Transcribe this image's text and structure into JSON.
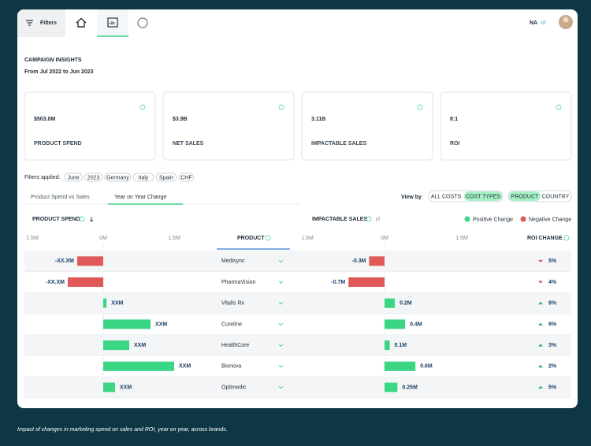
{
  "nav": {
    "filters": "Filters",
    "brand": "NA",
    "brand_suffix": "VI"
  },
  "header": {
    "title": "CAMPAIGN INSIGHTS",
    "subtitle": "From Jul 2022 to Jun 2023"
  },
  "kpis": [
    {
      "value": "$503.0M",
      "label": "PRODUCT SPEND"
    },
    {
      "value": "$3.9B",
      "label": "NET SALES"
    },
    {
      "value": "3.11B",
      "label": "IMPACTABLE SALES"
    },
    {
      "value": "8:1",
      "label": "ROI"
    }
  ],
  "filters": {
    "label": "Filters applied:",
    "chips": [
      "June",
      "2023",
      "Germany",
      "Italy",
      "Spain",
      "CHF"
    ]
  },
  "tabs": [
    "Product Spend vs Sales",
    "Year on Year Change"
  ],
  "view_by": {
    "label": "View by",
    "cost": [
      "ALL COSTS",
      "COST TYPES"
    ],
    "dim": [
      "PRODUCT",
      "COUNTRY"
    ]
  },
  "table": {
    "spend_header": "PRODUCT SPEND",
    "sales_header": "IMPACTABLE SALES",
    "product_header": "PRODUCT",
    "roi_header": "ROI CHANGE",
    "legend": [
      "Positive Change",
      "Negative Change"
    ],
    "colors": {
      "positive": "#3ad684",
      "negative": "#e05858"
    },
    "spend_lim": [
      -1.5,
      1.5
    ],
    "spend_ticks": [
      {
        "value": -1.5,
        "label": "1.5M"
      },
      {
        "value": 0,
        "label": "0M"
      },
      {
        "value": 1.5,
        "label": "1.5M"
      }
    ],
    "sales_lim": [
      -1.5,
      1.5
    ],
    "sales_ticks": [
      {
        "value": -1.5,
        "label": "1.5M"
      },
      {
        "value": 0,
        "label": "0M"
      },
      {
        "value": 1.5,
        "label": "1.5M"
      }
    ],
    "rows": [
      {
        "product": "Medisync",
        "spend": -0.55,
        "spend_label": "-XX.XM",
        "sales": -0.3,
        "sales_label": "-0.3M",
        "roi": "5%"
      },
      {
        "product": "PharmaVision",
        "spend": -0.75,
        "spend_label": "-XX.XM",
        "sales": -0.7,
        "sales_label": "-0.7M",
        "roi": "4%"
      },
      {
        "product": "Vitalis Rx",
        "spend": 0.07,
        "spend_label": "XXM",
        "sales": 0.2,
        "sales_label": "0.2M",
        "roi": "8%"
      },
      {
        "product": "Cureline",
        "spend": 1.0,
        "spend_label": "XXM",
        "sales": 0.4,
        "sales_label": "0.4M",
        "roi": "9%"
      },
      {
        "product": "HealthCore",
        "spend": 0.55,
        "spend_label": "XXM",
        "sales": 0.1,
        "sales_label": "0.1M",
        "roi": "3%"
      },
      {
        "product": "Bionova",
        "spend": 1.5,
        "spend_label": "XXM",
        "sales": 0.6,
        "sales_label": "0.6M",
        "roi": "2%"
      },
      {
        "product": "Optimedic",
        "spend": 0.25,
        "spend_label": "XXM",
        "sales": 0.25,
        "sales_label": "0.25M",
        "roi": "5%"
      }
    ]
  },
  "caption": "Impact of changes in marketing spend on sales and ROI, year on year, across brands."
}
